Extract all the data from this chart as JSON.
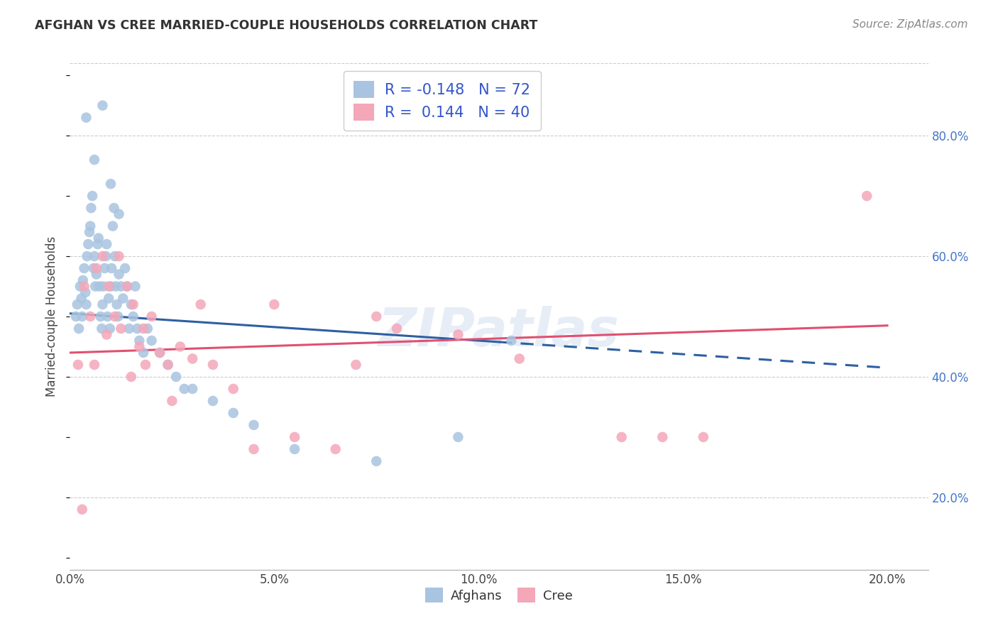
{
  "title": "AFGHAN VS CREE MARRIED-COUPLE HOUSEHOLDS CORRELATION CHART",
  "source": "Source: ZipAtlas.com",
  "ylabel": "Married-couple Households",
  "xlim": [
    0.0,
    21.0
  ],
  "ylim": [
    8.0,
    92.0
  ],
  "x_tick_vals": [
    0,
    5,
    10,
    15,
    20
  ],
  "y_tick_vals": [
    20,
    40,
    60,
    80
  ],
  "afghan_color": "#a8c4e0",
  "cree_color": "#f4a7b9",
  "afghan_line_color": "#2e5fa3",
  "cree_line_color": "#e05070",
  "legend_text_color": "#3355cc",
  "legend_R_color": "#cc2233",
  "afghan_R": -0.148,
  "afghan_N": 72,
  "cree_R": 0.144,
  "cree_N": 40,
  "background_color": "#ffffff",
  "grid_color": "#cccccc",
  "watermark": "ZIPatlas",
  "afghan_line_y0": 50.5,
  "afghan_line_y20": 41.5,
  "cree_line_y0": 44.0,
  "cree_line_y20": 48.5,
  "afghan_solid_end_x": 10.5,
  "afghans_x": [
    0.15,
    0.18,
    0.22,
    0.25,
    0.28,
    0.3,
    0.32,
    0.35,
    0.38,
    0.4,
    0.42,
    0.45,
    0.48,
    0.5,
    0.52,
    0.55,
    0.58,
    0.6,
    0.62,
    0.65,
    0.68,
    0.7,
    0.72,
    0.75,
    0.78,
    0.8,
    0.82,
    0.85,
    0.88,
    0.9,
    0.92,
    0.95,
    0.98,
    1.0,
    1.02,
    1.05,
    1.08,
    1.1,
    1.12,
    1.15,
    1.18,
    1.2,
    1.25,
    1.3,
    1.35,
    1.4,
    1.45,
    1.5,
    1.55,
    1.6,
    1.65,
    1.7,
    1.8,
    1.9,
    2.0,
    2.2,
    2.4,
    2.6,
    2.8,
    3.0,
    3.5,
    4.0,
    4.5,
    5.5,
    7.5,
    9.5,
    10.8,
    0.4,
    0.6,
    0.8,
    1.0,
    1.2
  ],
  "afghans_y": [
    50,
    52,
    48,
    55,
    53,
    50,
    56,
    58,
    54,
    52,
    60,
    62,
    64,
    65,
    68,
    70,
    58,
    60,
    55,
    57,
    62,
    63,
    55,
    50,
    48,
    52,
    55,
    58,
    60,
    62,
    50,
    53,
    48,
    55,
    58,
    65,
    68,
    60,
    55,
    52,
    50,
    57,
    55,
    53,
    58,
    55,
    48,
    52,
    50,
    55,
    48,
    46,
    44,
    48,
    46,
    44,
    42,
    40,
    38,
    38,
    36,
    34,
    32,
    28,
    26,
    30,
    46,
    83,
    76,
    85,
    72,
    67
  ],
  "cree_x": [
    0.2,
    0.35,
    0.5,
    0.65,
    0.8,
    0.95,
    1.1,
    1.25,
    1.4,
    1.55,
    1.7,
    1.85,
    2.0,
    2.2,
    2.4,
    2.7,
    3.0,
    3.5,
    4.0,
    5.0,
    6.5,
    7.5,
    8.0,
    9.5,
    11.0,
    13.5,
    15.5,
    19.5,
    0.3,
    0.6,
    0.9,
    1.2,
    1.5,
    1.8,
    2.5,
    3.2,
    4.5,
    5.5,
    7.0,
    14.5
  ],
  "cree_y": [
    42,
    55,
    50,
    58,
    60,
    55,
    50,
    48,
    55,
    52,
    45,
    42,
    50,
    44,
    42,
    45,
    43,
    42,
    38,
    52,
    28,
    50,
    48,
    47,
    43,
    30,
    30,
    70,
    18,
    42,
    47,
    60,
    40,
    48,
    36,
    52,
    28,
    30,
    42,
    30
  ]
}
